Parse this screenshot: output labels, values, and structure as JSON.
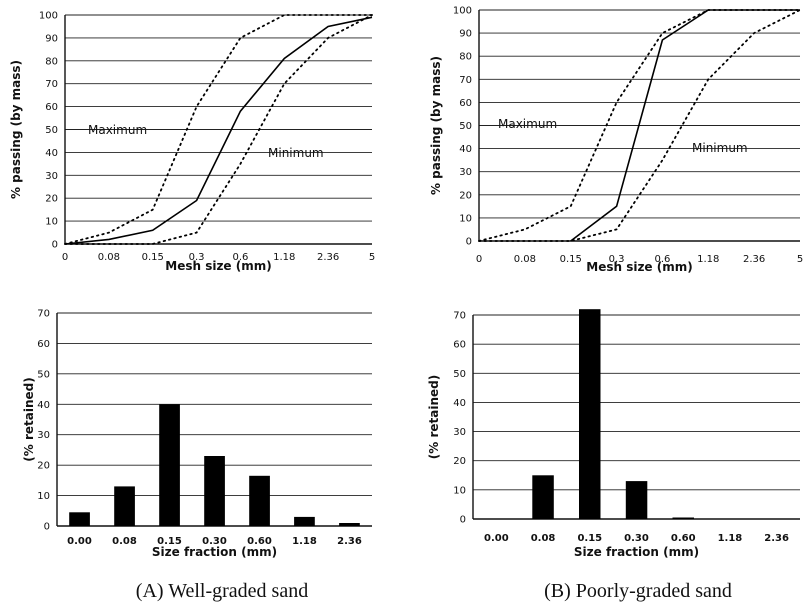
{
  "captions": {
    "a": "(A) Well-graded sand",
    "b": "(B) Poorly-graded sand"
  },
  "chart_data": [
    {
      "id": "a-grading",
      "type": "line",
      "xlabel": "Mesh size (mm)",
      "ylabel": "% passing (by mass)",
      "x": [
        "0",
        "0.08",
        "0.15",
        "0.3",
        "0.6",
        "1.18",
        "2.36",
        "5"
      ],
      "ylim": [
        0,
        100
      ],
      "yticks": [
        0,
        10,
        20,
        30,
        40,
        50,
        60,
        70,
        80,
        90,
        100
      ],
      "grid": true,
      "series": [
        {
          "name": "Maximum",
          "style": "dotted",
          "values": [
            0,
            5,
            15,
            60,
            90,
            100,
            100,
            100
          ]
        },
        {
          "name": "",
          "style": "solid",
          "values": [
            0,
            2,
            6,
            19,
            58,
            81,
            95,
            99
          ]
        },
        {
          "name": "Minimum",
          "style": "dotted",
          "values": [
            0,
            0,
            0,
            5,
            35,
            70,
            90,
            100
          ]
        }
      ]
    },
    {
      "id": "b-grading",
      "type": "line",
      "xlabel": "Mesh size (mm)",
      "ylabel": "% passing (by mass)",
      "x": [
        "0",
        "0.08",
        "0.15",
        "0.3",
        "0.6",
        "1.18",
        "2.36",
        "5"
      ],
      "ylim": [
        0,
        100
      ],
      "yticks": [
        0,
        10,
        20,
        30,
        40,
        50,
        60,
        70,
        80,
        90,
        100
      ],
      "grid": true,
      "series": [
        {
          "name": "Maximum",
          "style": "dotted",
          "values": [
            0,
            5,
            15,
            60,
            90,
            100,
            100,
            100
          ]
        },
        {
          "name": "",
          "style": "solid",
          "values": [
            null,
            null,
            0,
            15,
            87,
            100,
            100,
            100
          ]
        },
        {
          "name": "Minimum",
          "style": "dotted",
          "values": [
            0,
            0,
            0,
            5,
            35,
            70,
            90,
            100
          ]
        }
      ]
    },
    {
      "id": "a-retained",
      "type": "bar",
      "xlabel": "Size fraction (mm)",
      "ylabel": "(% retained)",
      "categories": [
        "0.00",
        "0.08",
        "0.15",
        "0.30",
        "0.60",
        "1.18",
        "2.36"
      ],
      "values": [
        4.5,
        13,
        40,
        23,
        16.5,
        3,
        1
      ],
      "ylim": [
        0,
        70
      ],
      "yticks": [
        0,
        10,
        20,
        30,
        40,
        50,
        60,
        70
      ],
      "grid": true
    },
    {
      "id": "b-retained",
      "type": "bar",
      "xlabel": "Size fraction (mm)",
      "ylabel": "(% retained)",
      "categories": [
        "0.00",
        "0.08",
        "0.15",
        "0.30",
        "0.60",
        "1.18",
        "2.36"
      ],
      "values": [
        0,
        15,
        72,
        13,
        0.5,
        0,
        0
      ],
      "ylim": [
        0,
        70
      ],
      "yticks": [
        0,
        10,
        20,
        30,
        40,
        50,
        60,
        70
      ],
      "grid": true
    }
  ]
}
